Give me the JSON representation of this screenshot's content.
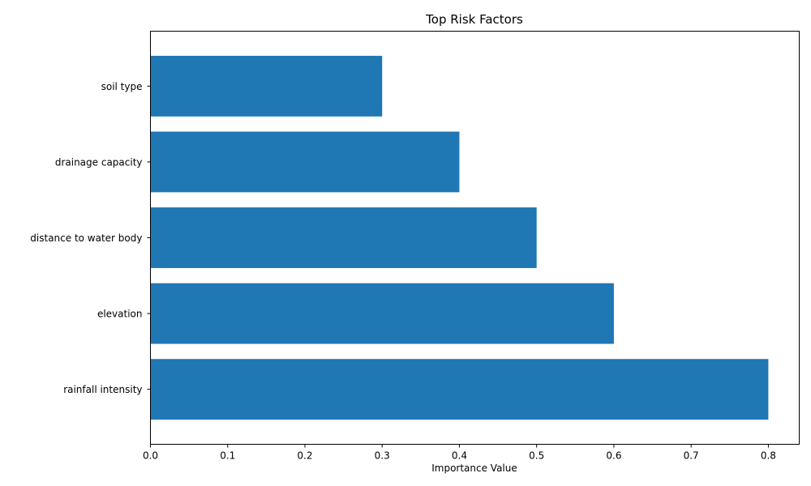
{
  "chart_data": {
    "type": "bar",
    "orientation": "horizontal",
    "title": "Top Risk Factors",
    "xlabel": "Importance Value",
    "ylabel": "",
    "categories": [
      "rainfall intensity",
      "elevation",
      "distance to water body",
      "drainage capacity",
      "soil type"
    ],
    "values": [
      0.8,
      0.6,
      0.5,
      0.4,
      0.3
    ],
    "xlim": [
      0,
      0.84
    ],
    "xticks": [
      "0.0",
      "0.1",
      "0.2",
      "0.3",
      "0.4",
      "0.5",
      "0.6",
      "0.7",
      "0.8"
    ],
    "grid": false,
    "legend": "none",
    "bar_color": "#1f77b4"
  }
}
